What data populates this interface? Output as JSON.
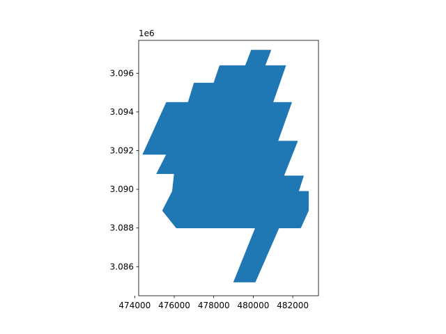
{
  "chart_data": {
    "type": "area",
    "title": "",
    "xlabel": "",
    "ylabel": "",
    "xlim": [
      474200,
      483300
    ],
    "ylim": [
      3084500,
      3097700
    ],
    "y_offset_label": "1e6",
    "x_ticks": [
      {
        "value": 474000,
        "label": "474000"
      },
      {
        "value": 476000,
        "label": "476000"
      },
      {
        "value": 478000,
        "label": "478000"
      },
      {
        "value": 480000,
        "label": "480000"
      },
      {
        "value": 482000,
        "label": "482000"
      }
    ],
    "y_ticks": [
      {
        "value": 3086000,
        "label": "3.086"
      },
      {
        "value": 3088000,
        "label": "3.088"
      },
      {
        "value": 3090000,
        "label": "3.090"
      },
      {
        "value": 3092000,
        "label": "3.092"
      },
      {
        "value": 3094000,
        "label": "3.094"
      },
      {
        "value": 3096000,
        "label": "3.096"
      }
    ],
    "fill_color": "#1f77b4",
    "grid": false,
    "polygon": [
      [
        479900,
        3097200
      ],
      [
        480900,
        3097200
      ],
      [
        480600,
        3096400
      ],
      [
        481650,
        3096400
      ],
      [
        481000,
        3094500
      ],
      [
        481950,
        3094500
      ],
      [
        481250,
        3092500
      ],
      [
        482250,
        3092500
      ],
      [
        481550,
        3090700
      ],
      [
        482550,
        3090700
      ],
      [
        482300,
        3089900
      ],
      [
        482800,
        3089900
      ],
      [
        482800,
        3088900
      ],
      [
        482400,
        3088000
      ],
      [
        481300,
        3088000
      ],
      [
        480100,
        3085200
      ],
      [
        479000,
        3085200
      ],
      [
        480100,
        3088000
      ],
      [
        476100,
        3088000
      ],
      [
        475400,
        3088900
      ],
      [
        475900,
        3089900
      ],
      [
        476000,
        3090800
      ],
      [
        475100,
        3090800
      ],
      [
        475600,
        3091800
      ],
      [
        474400,
        3091800
      ],
      [
        475600,
        3094500
      ],
      [
        476700,
        3094500
      ],
      [
        477000,
        3095500
      ],
      [
        478000,
        3095500
      ],
      [
        478300,
        3096400
      ],
      [
        479600,
        3096400
      ]
    ]
  }
}
